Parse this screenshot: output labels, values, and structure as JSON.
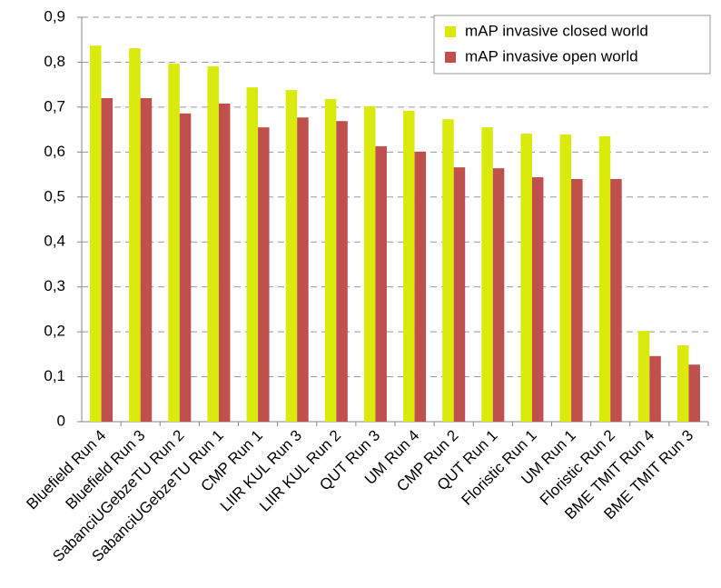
{
  "chart_data": {
    "type": "bar",
    "categories": [
      "Bluefield Run 4",
      "Bluefield Run 3",
      "SabanciUGebzeTU Run 2",
      "SabanciUGebzeTU Run 1",
      "CMP Run 1",
      "LIIR KUL Run 3",
      "LIIR KUL Run 2",
      "QUT Run 3",
      "UM Run 4",
      "CMP Run 2",
      "QUT Run 1",
      "Floristic Run 1",
      "UM Run 1",
      "Floristic Run 2",
      "BME TMIT Run 4",
      "BME TMIT Run 3"
    ],
    "series": [
      {
        "name": "mAP invasive closed world",
        "color": "#d9ea0c",
        "values": [
          0.837,
          0.831,
          0.797,
          0.791,
          0.744,
          0.738,
          0.718,
          0.702,
          0.692,
          0.673,
          0.655,
          0.641,
          0.639,
          0.635,
          0.202,
          0.17
        ]
      },
      {
        "name": "mAP invasive open world",
        "color": "#c0504d",
        "values": [
          0.72,
          0.72,
          0.686,
          0.708,
          0.655,
          0.677,
          0.669,
          0.613,
          0.601,
          0.566,
          0.564,
          0.544,
          0.54,
          0.54,
          0.146,
          0.127
        ]
      }
    ],
    "ylim": [
      0,
      0.9
    ],
    "yticks": [
      0,
      {
        "value": 0.1,
        "label": "0,1"
      },
      {
        "value": 0.2,
        "label": "0,2"
      },
      {
        "value": 0.3,
        "label": "0,3"
      },
      {
        "value": 0.4,
        "label": "0,4"
      },
      {
        "value": 0.5,
        "label": "0,5"
      },
      {
        "value": 0.6,
        "label": "0,6"
      },
      {
        "value": 0.7,
        "label": "0,7"
      },
      {
        "value": 0.8,
        "label": "0,8"
      },
      {
        "value": 0.9,
        "label": "0,9"
      }
    ],
    "grid": true,
    "legend": "top-right"
  }
}
